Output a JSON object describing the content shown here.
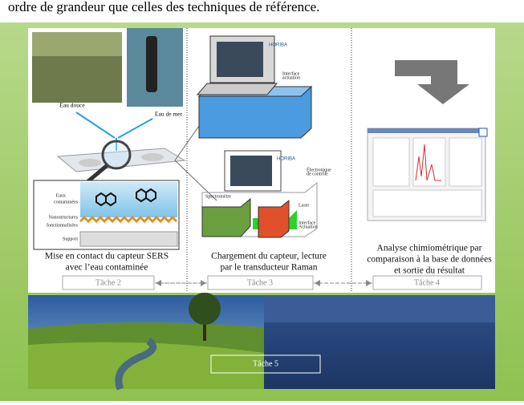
{
  "header": {
    "text": "ordre de grandeur que celles des techniques de référence."
  },
  "panel1": {
    "photo_labels": [
      "Eau douce",
      "Eau de mer"
    ],
    "layers": [
      "Eaux",
      "contaminées",
      "Nanostructures",
      "fonctionnalisées",
      "Support"
    ],
    "caption": [
      "Mise en contact du capteur SERS",
      "avec l’eau contaminée"
    ]
  },
  "panel2": {
    "brand": "HORIBA",
    "top_label": [
      "Interface",
      "actuation"
    ],
    "parts": [
      "Spectromètre",
      "Électronique",
      "de contrôle",
      "Laser",
      "Interface",
      "Actuation"
    ],
    "brand2": "HORIBA",
    "caption": [
      "Chargement du capteur, lecture",
      "par le transducteur Raman"
    ]
  },
  "panel3": {
    "caption": [
      "Analyse chimiométrique par",
      "comparaison à la base de données",
      "et sortie du résultat"
    ]
  },
  "tasks": [
    "Tâche 2",
    "Tâche 3",
    "Tâche 4",
    "Tâche 5"
  ]
}
